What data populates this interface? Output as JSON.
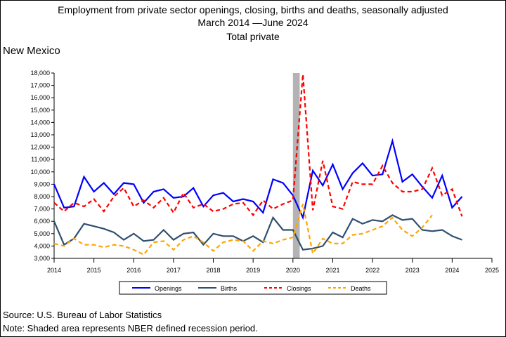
{
  "title": {
    "line1": "Employment from private sector openings, closing, births and deaths, seasonally adjusted",
    "line2": "March 2014  —June 2024",
    "line3": "Total private"
  },
  "region": "New Mexico",
  "source": "Source: U.S. Bureau of Labor Statistics",
  "note": "Note: Shaded area represents NBER defined recession period.",
  "chart_data": {
    "type": "line",
    "title": "Employment from private sector openings, closing, births and deaths, seasonally adjusted",
    "xlim": [
      2014,
      2025
    ],
    "ylim": [
      3000,
      18000
    ],
    "x_ticks": [
      "2014",
      "2015",
      "2016",
      "2017",
      "2018",
      "2019",
      "2020",
      "2021",
      "2022",
      "2023",
      "2024",
      "2025"
    ],
    "y_ticks": [
      "3,000",
      "4,000",
      "5,000",
      "6,000",
      "7,000",
      "8,000",
      "9,000",
      "10,000",
      "11,000",
      "12,000",
      "13,000",
      "14,000",
      "15,000",
      "16,000",
      "17,000",
      "18,000"
    ],
    "recession": [
      2020.0,
      2020.17
    ],
    "grid": false,
    "legend_position": "bottom",
    "x": [
      2014.0,
      2014.25,
      2014.5,
      2014.75,
      2015.0,
      2015.25,
      2015.5,
      2015.75,
      2016.0,
      2016.25,
      2016.5,
      2016.75,
      2017.0,
      2017.25,
      2017.5,
      2017.75,
      2018.0,
      2018.25,
      2018.5,
      2018.75,
      2019.0,
      2019.25,
      2019.5,
      2019.75,
      2020.0,
      2020.25,
      2020.5,
      2020.75,
      2021.0,
      2021.25,
      2021.5,
      2021.75,
      2022.0,
      2022.25,
      2022.5,
      2022.75,
      2023.0,
      2023.25,
      2023.5,
      2023.75,
      2024.0,
      2024.25
    ],
    "series": [
      {
        "name": "Openings",
        "color": "#0000ff",
        "dash": "solid",
        "values": [
          9000,
          7100,
          7200,
          9600,
          8400,
          9100,
          8200,
          9100,
          9000,
          7500,
          8400,
          8600,
          7900,
          8000,
          8700,
          7200,
          8100,
          8300,
          7600,
          7800,
          7600,
          6700,
          9400,
          9100,
          8100,
          6300,
          10100,
          8900,
          10600,
          8600,
          9900,
          10700,
          9700,
          9800,
          12500,
          9200,
          9800,
          8800,
          7900,
          9700,
          7100,
          8000
        ]
      },
      {
        "name": "Births",
        "color": "#2f4f6f",
        "dash": "solid",
        "values": [
          6000,
          4100,
          4600,
          5800,
          5600,
          5400,
          5100,
          4500,
          5000,
          4400,
          4500,
          5300,
          4500,
          5000,
          5100,
          4100,
          5000,
          4800,
          4800,
          4400,
          4800,
          4300,
          6300,
          5300,
          5300,
          3700,
          3800,
          4000,
          5100,
          4700,
          6200,
          5800,
          6100,
          6000,
          6500,
          6100,
          6200,
          5300,
          5200,
          5300,
          4800,
          4500
        ]
      },
      {
        "name": "Closings",
        "color": "#ff0000",
        "dash": "dashed",
        "values": [
          7500,
          6800,
          7500,
          7200,
          7800,
          6800,
          8000,
          8700,
          7200,
          7700,
          7100,
          7900,
          6700,
          8300,
          7100,
          7400,
          6800,
          7000,
          7400,
          7500,
          6500,
          7700,
          7000,
          7400,
          7700,
          17900,
          6900,
          10900,
          7200,
          7000,
          9200,
          9000,
          9000,
          10500,
          9100,
          8400,
          8400,
          8600,
          10300,
          8100,
          8600,
          6400
        ]
      },
      {
        "name": "Deaths",
        "color": "#ffa500",
        "dash": "dashed",
        "values": [
          4200,
          4000,
          4600,
          4100,
          4100,
          3900,
          4100,
          4000,
          3700,
          3300,
          4300,
          4400,
          3700,
          4500,
          4800,
          4300,
          3600,
          4300,
          4500,
          4400,
          3600,
          4400,
          4200,
          4500,
          4700,
          7400,
          3400,
          4600,
          4200,
          4200,
          4900,
          5000,
          5300,
          5600,
          6300,
          5300,
          4800,
          5500,
          6500,
          null,
          null,
          null
        ]
      }
    ]
  }
}
